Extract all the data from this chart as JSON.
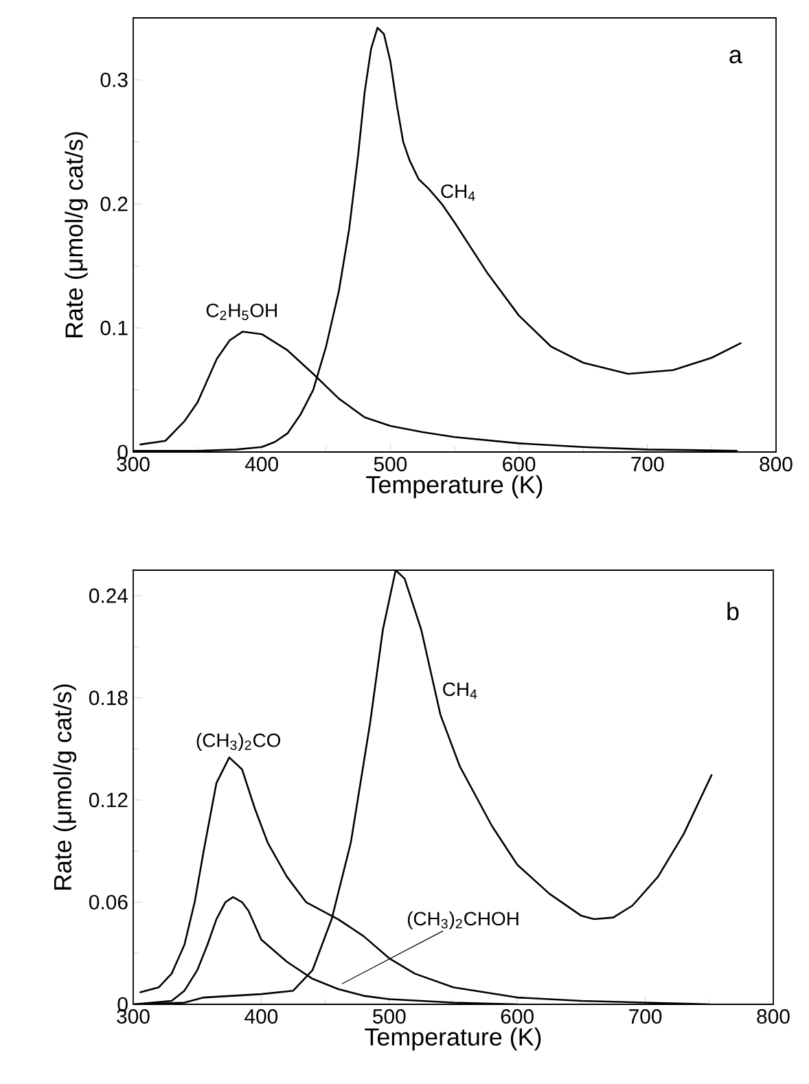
{
  "chart_data": [
    {
      "type": "line",
      "xlabel": "Temperature (K)",
      "ylabel": "Rate (μmol/g cat/s)",
      "xlim": [
        300,
        800
      ],
      "ylim": [
        0,
        0.35
      ],
      "xticks": [
        300,
        400,
        500,
        600,
        700,
        800
      ],
      "yticks": [
        0,
        0.1,
        0.2,
        0.3
      ],
      "annotations": [
        "a",
        "C$_{2}$H$_{5}$OH",
        "CH$_{4}$"
      ],
      "series": [
        {
          "color": "#000000",
          "x": [
            305,
            325,
            340,
            350,
            365,
            375,
            385,
            400,
            420,
            440,
            460,
            480,
            500,
            525,
            550,
            600,
            650,
            700,
            770
          ],
          "values": [
            0.006,
            0.009,
            0.025,
            0.04,
            0.075,
            0.09,
            0.097,
            0.095,
            0.082,
            0.063,
            0.043,
            0.028,
            0.021,
            0.016,
            0.012,
            0.007,
            0.004,
            0.002,
            0.001
          ]
        },
        {
          "color": "#000000",
          "x": [
            300,
            350,
            380,
            400,
            410,
            420,
            430,
            440,
            450,
            460,
            468,
            475,
            480,
            485,
            490,
            495,
            500,
            505,
            510,
            515,
            522,
            530,
            540,
            550,
            575,
            600,
            625,
            650,
            685,
            720,
            750,
            773
          ],
          "values": [
            0.001,
            0.001,
            0.002,
            0.004,
            0.008,
            0.015,
            0.03,
            0.05,
            0.085,
            0.13,
            0.18,
            0.24,
            0.29,
            0.325,
            0.342,
            0.337,
            0.315,
            0.28,
            0.25,
            0.235,
            0.22,
            0.212,
            0.2,
            0.185,
            0.145,
            0.11,
            0.085,
            0.072,
            0.063,
            0.066,
            0.076,
            0.088
          ]
        }
      ]
    },
    {
      "type": "line",
      "xlabel": "Temperature (K)",
      "ylabel": "Rate (μmol/g cat/s)",
      "xlim": [
        300,
        800
      ],
      "ylim": [
        0,
        0.255
      ],
      "xticks": [
        300,
        400,
        500,
        600,
        700,
        800
      ],
      "yticks": [
        0,
        0.06,
        0.12,
        0.18,
        0.24
      ],
      "annotations": [
        "b",
        "(CH$_{3}$)$_{2}$CO",
        "CH$_{4}$",
        {
          "text": "(CH$_{3}$)$_{2}$CHOH",
          "x": 463,
          "y": 0.012
        }
      ],
      "series": [
        {
          "color": "#000000",
          "x": [
            305,
            320,
            330,
            340,
            348,
            355,
            365,
            375,
            385,
            395,
            405,
            420,
            435,
            460,
            480,
            500,
            520,
            550,
            600,
            650,
            700,
            750
          ],
          "values": [
            0.007,
            0.01,
            0.018,
            0.035,
            0.06,
            0.09,
            0.13,
            0.145,
            0.138,
            0.115,
            0.095,
            0.075,
            0.06,
            0.05,
            0.04,
            0.027,
            0.018,
            0.01,
            0.004,
            0.002,
            0.001,
            0.0
          ]
        },
        {
          "color": "#000000",
          "x": [
            300,
            330,
            340,
            350,
            358,
            365,
            372,
            378,
            385,
            390,
            400,
            420,
            440,
            460,
            480,
            500,
            550,
            600
          ],
          "values": [
            0.0,
            0.002,
            0.008,
            0.02,
            0.035,
            0.05,
            0.06,
            0.063,
            0.06,
            0.055,
            0.038,
            0.025,
            0.015,
            0.009,
            0.005,
            0.003,
            0.001,
            0.0
          ]
        },
        {
          "color": "#000000",
          "x": [
            300,
            340,
            355,
            400,
            425,
            440,
            455,
            470,
            485,
            495,
            505,
            512,
            525,
            540,
            555,
            580,
            600,
            625,
            650,
            660,
            675,
            690,
            710,
            730,
            752
          ],
          "values": [
            0.0,
            0.001,
            0.004,
            0.006,
            0.008,
            0.02,
            0.05,
            0.095,
            0.165,
            0.22,
            0.255,
            0.25,
            0.22,
            0.17,
            0.14,
            0.105,
            0.082,
            0.065,
            0.052,
            0.05,
            0.051,
            0.058,
            0.075,
            0.1,
            0.135
          ]
        }
      ]
    }
  ]
}
